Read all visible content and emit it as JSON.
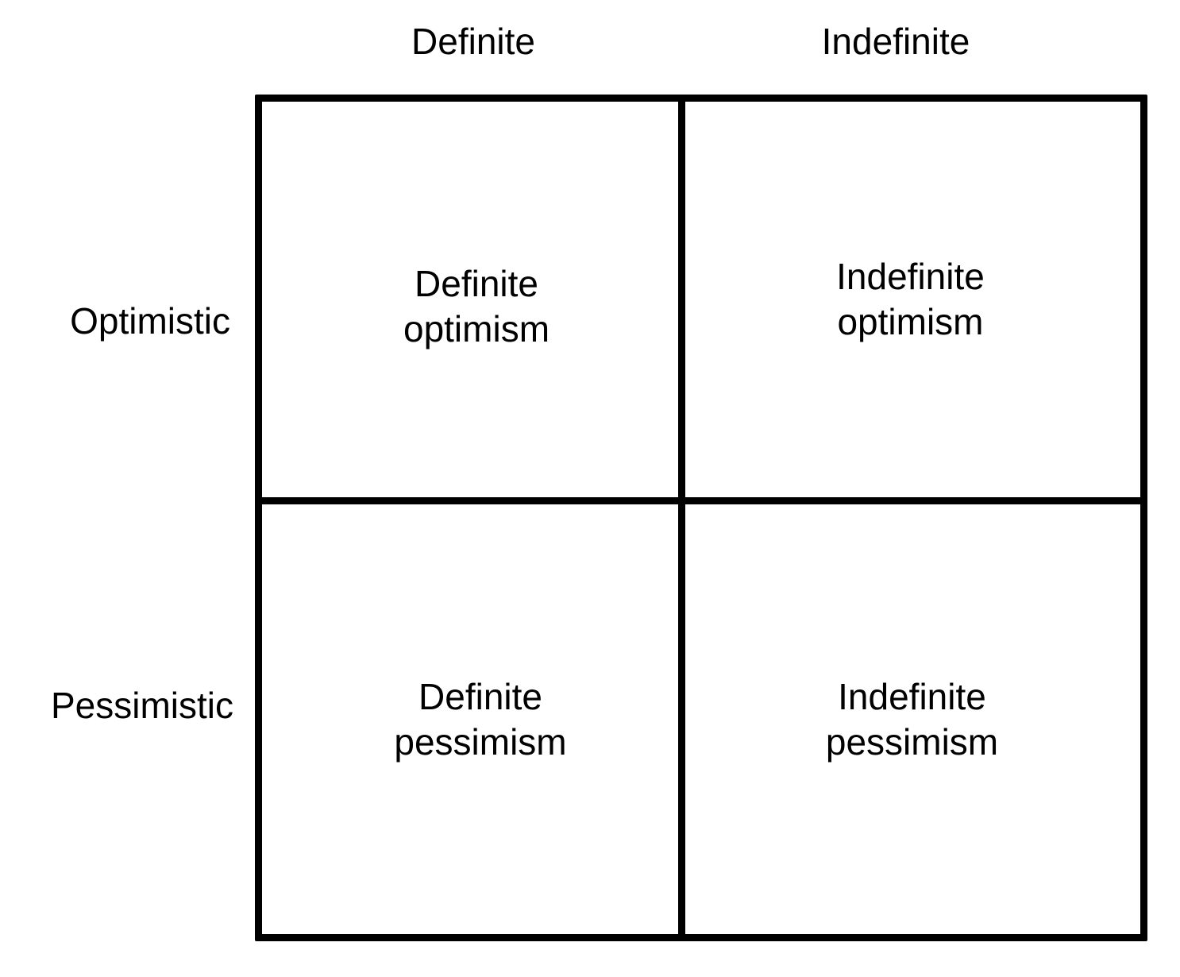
{
  "columns": {
    "definite": "Definite",
    "indefinite": "Indefinite"
  },
  "rows": {
    "optimistic": "Optimistic",
    "pessimistic": "Pessimistic"
  },
  "cells": {
    "definite_optimism": {
      "line1": "Definite",
      "line2": "optimism"
    },
    "indefinite_optimism": {
      "line1": "Indefinite",
      "line2": "optimism"
    },
    "definite_pessimism": {
      "line1": "Definite",
      "line2": "pessimism"
    },
    "indefinite_pessimism": {
      "line1": "Indefinite",
      "line2": "pessimism"
    }
  },
  "colors": {
    "line": "#000000",
    "background": "#ffffff"
  }
}
